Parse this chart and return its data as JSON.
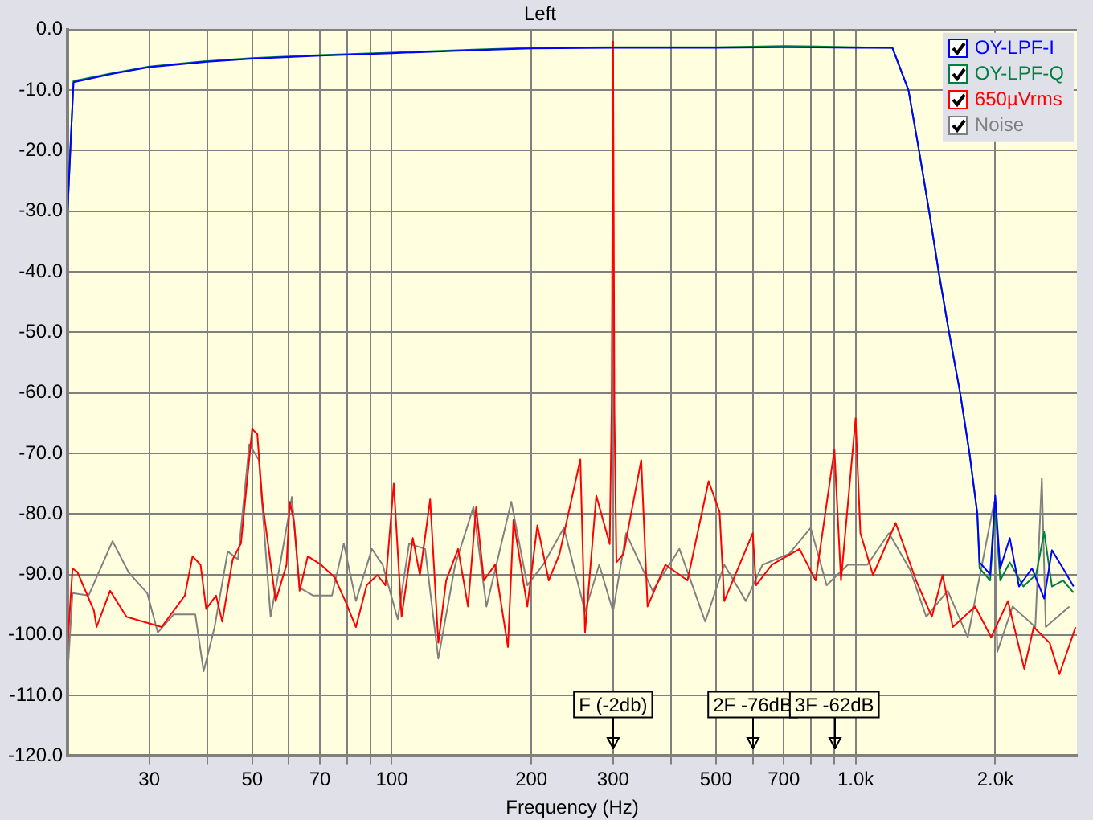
{
  "chart_data": {
    "type": "line",
    "title": "Left",
    "xlabel": "Frequency (Hz)",
    "log": "x",
    "grid": true,
    "legend": "top right",
    "marker": "none",
    "line_style": "solid",
    "xlim": [
      20,
      3000
    ],
    "xticks": [
      {
        "value": 30,
        "label": "30"
      },
      {
        "value": 40,
        "label": null
      },
      {
        "value": 50,
        "label": "50"
      },
      {
        "value": 60,
        "label": null
      },
      {
        "value": 70,
        "label": "70"
      },
      {
        "value": 80,
        "label": null
      },
      {
        "value": 90,
        "label": null
      },
      {
        "value": 100,
        "label": "100"
      },
      {
        "value": 200,
        "label": "200"
      },
      {
        "value": 300,
        "label": "300"
      },
      {
        "value": 400,
        "label": null
      },
      {
        "value": 500,
        "label": "500"
      },
      {
        "value": 600,
        "label": null
      },
      {
        "value": 700,
        "label": "700"
      },
      {
        "value": 800,
        "label": null
      },
      {
        "value": 900,
        "label": null
      },
      {
        "value": 1000,
        "label": "1.0k"
      },
      {
        "value": 2000,
        "label": "2.0k"
      }
    ],
    "ylim": [
      -120,
      0
    ],
    "yticks": [
      {
        "value": 0,
        "label": "0.0"
      },
      {
        "value": -10,
        "label": "-10.0"
      },
      {
        "value": -20,
        "label": "-20.0"
      },
      {
        "value": -30,
        "label": "-30.0"
      },
      {
        "value": -40,
        "label": "-40.0"
      },
      {
        "value": -50,
        "label": "-50.0"
      },
      {
        "value": -60,
        "label": "-60.0"
      },
      {
        "value": -70,
        "label": "-70.0"
      },
      {
        "value": -80,
        "label": "-80.0"
      },
      {
        "value": -90,
        "label": "-90.0"
      },
      {
        "value": -100,
        "label": "-100.0"
      },
      {
        "value": -110,
        "label": "-110.0"
      },
      {
        "value": -120,
        "label": "-120.0"
      }
    ],
    "annotations": [
      {
        "text": "F (-2db)",
        "x": 300
      },
      {
        "text": "2F -76dB",
        "x": 600
      },
      {
        "text": "3F -62dB",
        "x": 900
      }
    ],
    "series": [
      {
        "name": "OY-LPF-I",
        "color": "#0000ff",
        "x": [
          20,
          20.3,
          20.6,
          25,
          30,
          40,
          50,
          70,
          100,
          150,
          200,
          300,
          500,
          700,
          1000,
          1200,
          1300,
          1370,
          1440,
          1510,
          1590,
          1680,
          1760,
          1830,
          1850,
          1950,
          2000,
          2050,
          2150,
          2250,
          2400,
          2550,
          2650,
          2800,
          2950
        ],
        "values": [
          -30,
          -19,
          -8.7,
          -7.3,
          -6.2,
          -5.3,
          -4.8,
          -4.3,
          -3.9,
          -3.4,
          -3.1,
          -3,
          -3,
          -2.9,
          -3,
          -3,
          -10,
          -20,
          -30,
          -40,
          -50,
          -60,
          -70,
          -80,
          -88,
          -90,
          -77,
          -89,
          -84,
          -92,
          -89,
          -94,
          -86,
          -89,
          -92
        ]
      },
      {
        "name": "OY-LPF-Q",
        "color": "#008040",
        "x": [
          20,
          20.3,
          20.6,
          25,
          30,
          40,
          50,
          70,
          100,
          150,
          200,
          300,
          500,
          700,
          1000,
          1200,
          1300,
          1370,
          1440,
          1510,
          1590,
          1680,
          1760,
          1830,
          1850,
          1950,
          2000,
          2050,
          2150,
          2300,
          2450,
          2550,
          2650,
          2800,
          2950
        ],
        "values": [
          -30,
          -19,
          -8.5,
          -7.2,
          -6.1,
          -5.2,
          -4.7,
          -4.2,
          -3.8,
          -3.3,
          -3,
          -2.9,
          -2.9,
          -2.7,
          -2.9,
          -3,
          -10,
          -20,
          -30,
          -40,
          -50,
          -60,
          -70,
          -80,
          -89,
          -91,
          -79,
          -91,
          -88,
          -92,
          -90,
          -83,
          -92,
          -91,
          -93
        ]
      },
      {
        "name": "650µVrms",
        "color": "#ff0000",
        "x": [
          20,
          20.5,
          21,
          22.8,
          23.1,
          24.7,
          26.8,
          29.7,
          31.9,
          35.8,
          37.2,
          38.7,
          39.8,
          41.8,
          43.1,
          45.4,
          47.3,
          50,
          51.3,
          52.6,
          56.2,
          59.3,
          60.3,
          61.6,
          63.3,
          65.9,
          70.4,
          75.3,
          79.4,
          83.7,
          88.3,
          93.1,
          96.9,
          101,
          105,
          111,
          115,
          121,
          126,
          131,
          139,
          146,
          152,
          158,
          167,
          178,
          183,
          196,
          206,
          218,
          230,
          255,
          261,
          276,
          295,
          298,
          300,
          302,
          305,
          316,
          345,
          356,
          389,
          434,
          482,
          509,
          521,
          600,
          610,
          660,
          757,
          820,
          900,
          930,
          1000,
          1024,
          1090,
          1220,
          1350,
          1460,
          1540,
          1620,
          1810,
          1960,
          2130,
          2310,
          2420,
          2620,
          2750,
          2980
        ],
        "values": [
          -101.7,
          -89,
          -89.6,
          -96,
          -98.7,
          -92.7,
          -97,
          -98,
          -98.7,
          -93.5,
          -87,
          -88.4,
          -95.7,
          -93.5,
          -97.8,
          -87.5,
          -84.9,
          -66,
          -66.8,
          -78,
          -94.4,
          -88.4,
          -78,
          -81.5,
          -92.7,
          -87,
          -88.4,
          -90.5,
          -94.4,
          -98.7,
          -91.8,
          -90.1,
          -91.8,
          -75,
          -97,
          -84,
          -90.1,
          -77.6,
          -101.3,
          -91,
          -85.8,
          -95.3,
          -78.9,
          -91,
          -88.4,
          -102,
          -81,
          -95.3,
          -81.9,
          -91,
          -86.6,
          -71,
          -99.6,
          -77,
          -85,
          -62,
          -2,
          -63,
          -88,
          -86.6,
          -71.1,
          -95.3,
          -88.4,
          -91,
          -74.6,
          -79.7,
          -94.4,
          -83.2,
          -91.8,
          -88.4,
          -85.8,
          -91,
          -69.4,
          -91,
          -64.2,
          -83.2,
          -90.1,
          -81.5,
          -91,
          -97,
          -90.1,
          -98.7,
          -95.3,
          -100.4,
          -94.4,
          -105.6,
          -98.7,
          -101.3,
          -106.5,
          -98.7
        ]
      },
      {
        "name": "Noise",
        "color": "#808080",
        "x": [
          20,
          20.5,
          22.2,
          25,
          27.1,
          29.7,
          31.3,
          33.9,
          37.7,
          39.3,
          41.5,
          44.3,
          46.6,
          49.3,
          51.7,
          54.8,
          57.7,
          60.9,
          63.3,
          67.7,
          74.3,
          78.8,
          83.7,
          90.6,
          95.6,
          103,
          109,
          118,
          126,
          137,
          150,
          160,
          181,
          196,
          212,
          235,
          261,
          280,
          300,
          320,
          365,
          417,
          474,
          521,
          580,
          630,
          719,
          800,
          866,
          962,
          1060,
          1180,
          1310,
          1420,
          1580,
          1745,
          1990,
          2020,
          2180,
          2440,
          2520,
          2570,
          2890
        ],
        "values": [
          -106.5,
          -93.1,
          -93.5,
          -84.5,
          -89.7,
          -93.1,
          -99.6,
          -96.6,
          -96.6,
          -106,
          -98.7,
          -86.2,
          -87.5,
          -68.5,
          -71.1,
          -97,
          -87.5,
          -77.2,
          -92.2,
          -93.5,
          -93.5,
          -84.9,
          -94.4,
          -85.8,
          -88.4,
          -97.4,
          -84.9,
          -85.8,
          -103.9,
          -88.4,
          -78.9,
          -95.3,
          -78,
          -91.8,
          -88.4,
          -82.3,
          -96.1,
          -88.4,
          -96.1,
          -83.2,
          -92.7,
          -85.8,
          -97.8,
          -88.4,
          -94.4,
          -88.4,
          -86.6,
          -82.3,
          -91.8,
          -88.4,
          -88.4,
          -83.2,
          -89.2,
          -97,
          -92.7,
          -100.4,
          -78,
          -102.8,
          -95.3,
          -98.7,
          -74.1,
          -98.7,
          -95.3
        ]
      }
    ]
  }
}
